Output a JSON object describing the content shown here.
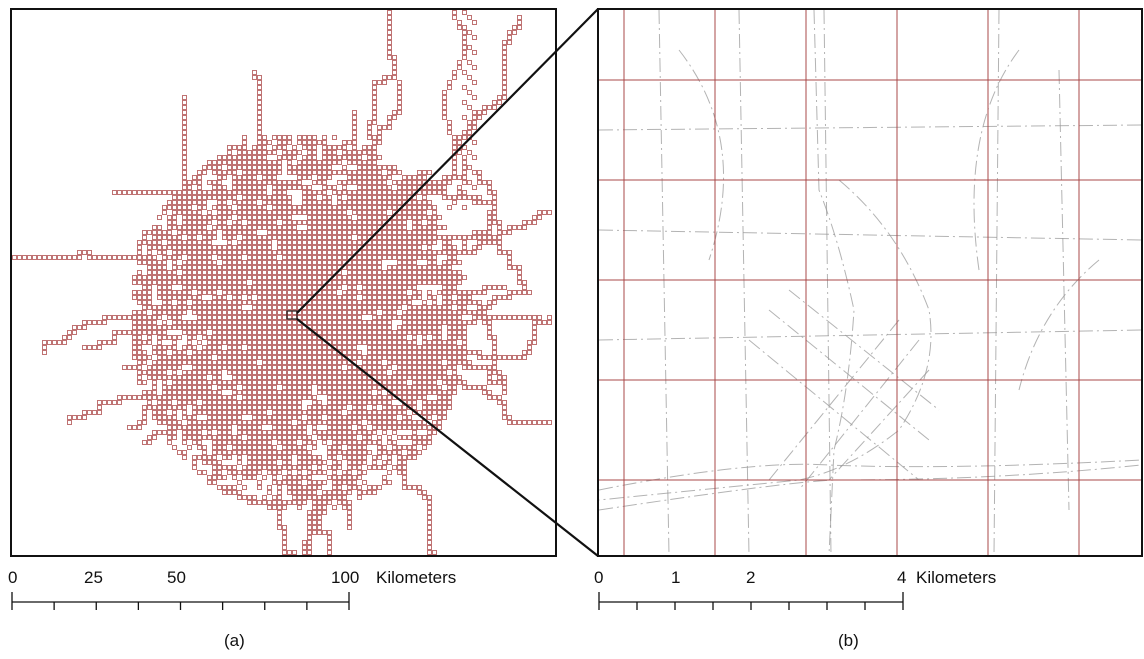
{
  "panels": {
    "a": {
      "caption": "(a)",
      "scale_bar": {
        "tick_labels": [
          "0",
          "25",
          "50",
          "100"
        ],
        "tick_values": [
          0,
          25,
          50,
          100
        ],
        "max": 100,
        "minor_divisions": 8,
        "unit": "Kilometers"
      }
    },
    "b": {
      "caption": "(b)",
      "scale_bar": {
        "tick_labels": [
          "0",
          "1",
          "2",
          "4"
        ],
        "tick_values": [
          0,
          1,
          2,
          4
        ],
        "max": 4,
        "minor_divisions": 8,
        "unit": "Kilometers"
      }
    }
  },
  "colors": {
    "grid_cells": "#b05050",
    "zoom_grid": "#a84848",
    "roads": "#9a9a9a",
    "frame": "#111111"
  }
}
